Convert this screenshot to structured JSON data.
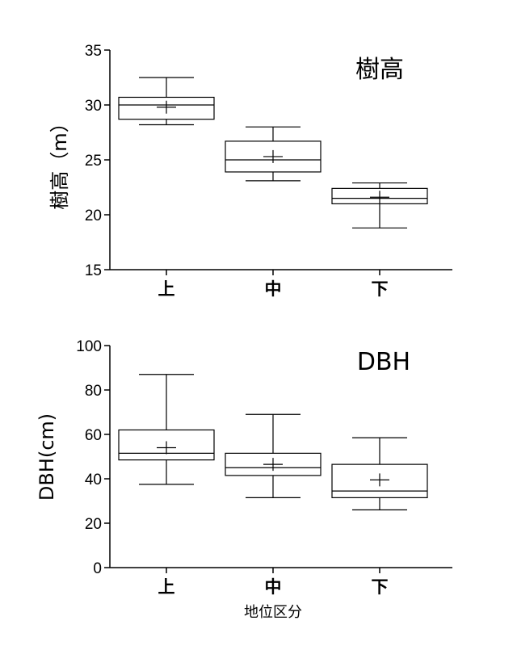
{
  "chart_data": [
    {
      "type": "box",
      "title": "樹高",
      "ylabel": "樹高（m）",
      "xlabel": "",
      "ylim": [
        15,
        35
      ],
      "yticks": [
        15,
        20,
        25,
        30,
        35
      ],
      "categories": [
        "上",
        "中",
        "下"
      ],
      "boxes": [
        {
          "category": "上",
          "min": 28.2,
          "q1": 28.7,
          "median": 30.0,
          "q3": 30.7,
          "max": 32.5,
          "mean": 29.8
        },
        {
          "category": "中",
          "min": 23.1,
          "q1": 23.9,
          "median": 25.0,
          "q3": 26.7,
          "max": 28.0,
          "mean": 25.3
        },
        {
          "category": "下",
          "min": 18.8,
          "q1": 21.0,
          "median": 21.5,
          "q3": 22.4,
          "max": 22.9,
          "mean": 21.6
        }
      ]
    },
    {
      "type": "box",
      "title": "DBH",
      "ylabel": "DBH(cm)",
      "xlabel": "地位区分",
      "ylim": [
        0,
        100
      ],
      "yticks": [
        0,
        20,
        40,
        60,
        80,
        100
      ],
      "categories": [
        "上",
        "中",
        "下"
      ],
      "boxes": [
        {
          "category": "上",
          "min": 37.5,
          "q1": 48.5,
          "median": 51.5,
          "q3": 62.0,
          "max": 87.0,
          "mean": 54.0
        },
        {
          "category": "中",
          "min": 31.5,
          "q1": 41.5,
          "median": 45.0,
          "q3": 51.5,
          "max": 69.0,
          "mean": 46.5
        },
        {
          "category": "下",
          "min": 26.0,
          "q1": 31.5,
          "median": 34.5,
          "q3": 46.5,
          "max": 58.5,
          "mean": 39.5
        }
      ]
    }
  ]
}
